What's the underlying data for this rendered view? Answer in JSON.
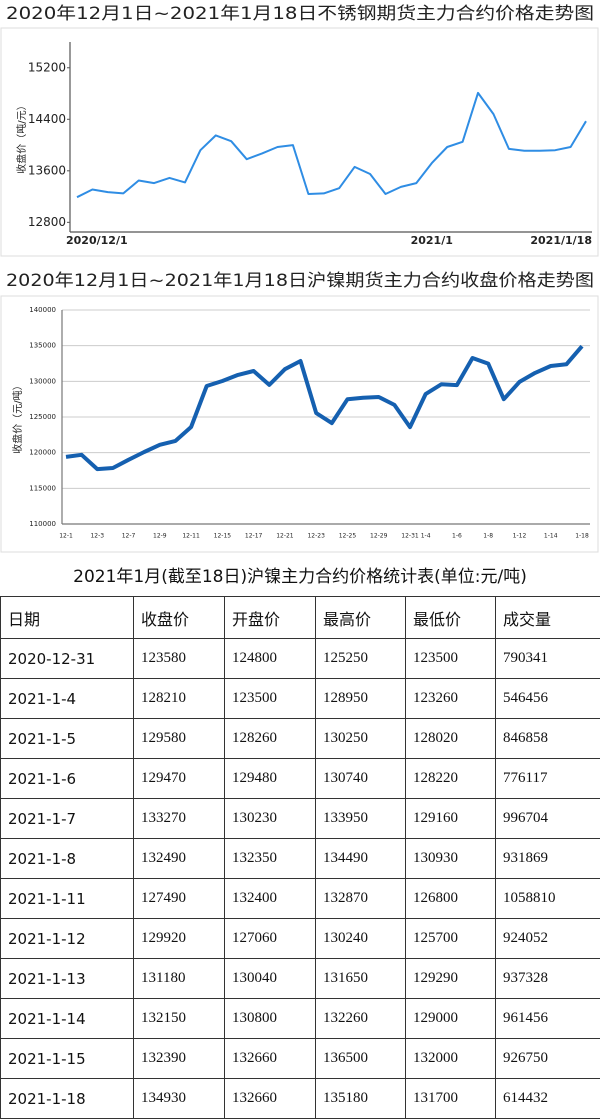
{
  "chart_data": [
    {
      "type": "line",
      "title": "2020年12月1日~2021年1月18日不锈钢期货主力合约价格走势图",
      "y_label": "收盘价（吨/元）",
      "categories": [
        "2020/12/1",
        null,
        null,
        null,
        null,
        null,
        null,
        null,
        null,
        null,
        null,
        null,
        null,
        null,
        null,
        null,
        null,
        null,
        null,
        null,
        null,
        null,
        null,
        "2021/1",
        null,
        null,
        null,
        null,
        null,
        null,
        null,
        null,
        null,
        "2021/1/18"
      ],
      "series": [
        {
          "name": "不锈钢",
          "color": "#2f8de4",
          "values": [
            13190,
            13310,
            13270,
            13250,
            13450,
            13410,
            13490,
            13420,
            13920,
            14150,
            14060,
            13780,
            13870,
            13970,
            14000,
            13240,
            13250,
            13330,
            13660,
            13550,
            13240,
            13350,
            13410,
            13720,
            13970,
            14050,
            14810,
            14480,
            13940,
            13910,
            13910,
            13920,
            13970,
            14370
          ]
        }
      ],
      "ylim": [
        12650,
        15600
      ],
      "yticks": [
        12800,
        13600,
        14400,
        15200
      ],
      "grid": false
    },
    {
      "type": "line",
      "title": "2020年12月1日~2021年1月18日沪镍期货主力合约收盘价格走势图",
      "y_label": "收盘价（元/吨）",
      "categories": [
        "12-1",
        null,
        "12-3",
        null,
        "12-7",
        null,
        "12-9",
        null,
        "12-11",
        null,
        "12-15",
        null,
        "12-17",
        null,
        "12-21",
        null,
        "12-23",
        null,
        "12-25",
        null,
        "12-29",
        null,
        "12-31",
        "1-4",
        null,
        "1-6",
        null,
        "1-8",
        null,
        "1-12",
        null,
        "1-14",
        null,
        "1-18"
      ],
      "series": [
        {
          "name": "沪镍",
          "color": "#1560b0",
          "values": [
            119400,
            119700,
            117700,
            117850,
            119000,
            120100,
            121100,
            121650,
            123600,
            129350,
            130050,
            130900,
            131450,
            129500,
            131700,
            132850,
            125550,
            124150,
            127500,
            127700,
            127800,
            126700,
            123580,
            128210,
            129580,
            129470,
            133270,
            132490,
            127490,
            129920,
            131180,
            132150,
            132390,
            134930
          ]
        }
      ],
      "ylim": [
        110000,
        140000
      ],
      "yticks": [
        110000,
        115000,
        120000,
        125000,
        130000,
        135000,
        140000
      ],
      "grid": true
    }
  ],
  "table": {
    "title": "2021年1月(截至18日)沪镍主力合约价格统计表(单位:元/吨)",
    "header": [
      "日期",
      "收盘价",
      "开盘价",
      "最高价",
      "最低价",
      "成交量"
    ],
    "rows": [
      [
        "2020-12-31",
        123580,
        124800,
        125250,
        123500,
        790341
      ],
      [
        "2021-1-4",
        128210,
        123500,
        128950,
        123260,
        546456
      ],
      [
        "2021-1-5",
        129580,
        128260,
        130250,
        128020,
        846858
      ],
      [
        "2021-1-6",
        129470,
        129480,
        130740,
        128220,
        776117
      ],
      [
        "2021-1-7",
        133270,
        130230,
        133950,
        129160,
        996704
      ],
      [
        "2021-1-8",
        132490,
        132350,
        134490,
        130930,
        931869
      ],
      [
        "2021-1-11",
        127490,
        132400,
        132870,
        126800,
        1058810
      ],
      [
        "2021-1-12",
        129920,
        127060,
        130240,
        125700,
        924052
      ],
      [
        "2021-1-13",
        131180,
        130040,
        131650,
        129290,
        937328
      ],
      [
        "2021-1-14",
        132150,
        130800,
        132260,
        129000,
        961456
      ],
      [
        "2021-1-15",
        132390,
        132660,
        136500,
        132000,
        926750
      ],
      [
        "2021-1-18",
        134930,
        132660,
        135180,
        131700,
        614432
      ]
    ]
  }
}
